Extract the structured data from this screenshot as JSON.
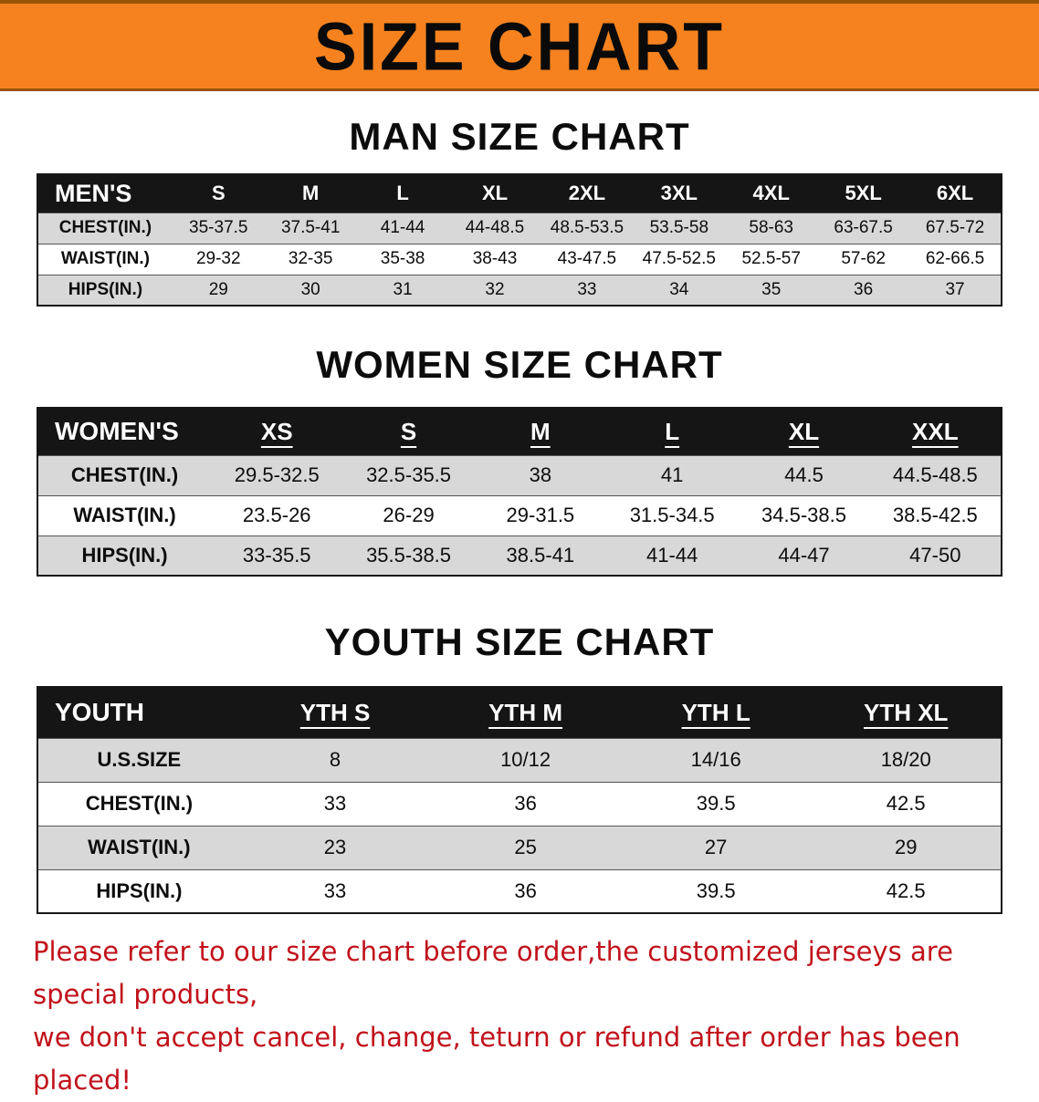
{
  "banner": {
    "title": "SIZE CHART"
  },
  "colors": {
    "banner_bg": "#f5821f",
    "banner_edge": "#9a5405",
    "header_bg": "#151515",
    "header_text": "#ffffff",
    "stripe_gray": "#d8d8d8",
    "row_white": "#ffffff",
    "footer_red": "#c1121c"
  },
  "sections": [
    {
      "heading": "MAN SIZE CHART",
      "table": {
        "corner": "MEN'S",
        "columns": [
          "S",
          "M",
          "L",
          "XL",
          "2XL",
          "3XL",
          "4XL",
          "5XL",
          "6XL"
        ],
        "rows": [
          {
            "label": "CHEST(IN.)",
            "values": [
              "35-37.5",
              "37.5-41",
              "41-44",
              "44-48.5",
              "48.5-53.5",
              "53.5-58",
              "58-63",
              "63-67.5",
              "67.5-72"
            ]
          },
          {
            "label": "WAIST(IN.)",
            "values": [
              "29-32",
              "32-35",
              "35-38",
              "38-43",
              "43-47.5",
              "47.5-52.5",
              "52.5-57",
              "57-62",
              "62-66.5"
            ]
          },
          {
            "label": "HIPS(IN.)",
            "values": [
              "29",
              "30",
              "31",
              "32",
              "33",
              "34",
              "35",
              "36",
              "37"
            ]
          }
        ]
      }
    },
    {
      "heading": "WOMEN SIZE CHART",
      "table": {
        "corner": "WOMEN'S",
        "columns": [
          "XS",
          "S",
          "M",
          "L",
          "XL",
          "XXL"
        ],
        "rows": [
          {
            "label": "CHEST(IN.)",
            "values": [
              "29.5-32.5",
              "32.5-35.5",
              "38",
              "41",
              "44.5",
              "44.5-48.5"
            ]
          },
          {
            "label": "WAIST(IN.)",
            "values": [
              "23.5-26",
              "26-29",
              "29-31.5",
              "31.5-34.5",
              "34.5-38.5",
              "38.5-42.5"
            ]
          },
          {
            "label": "HIPS(IN.)",
            "values": [
              "33-35.5",
              "35.5-38.5",
              "38.5-41",
              "41-44",
              "44-47",
              "47-50"
            ]
          }
        ]
      }
    },
    {
      "heading": "YOUTH SIZE CHART",
      "table": {
        "corner": "YOUTH",
        "columns": [
          "YTH S",
          "YTH M",
          "YTH L",
          "YTH XL"
        ],
        "rows": [
          {
            "label": "U.S.SIZE",
            "values": [
              "8",
              "10/12",
              "14/16",
              "18/20"
            ]
          },
          {
            "label": "CHEST(IN.)",
            "values": [
              "33",
              "36",
              "39.5",
              "42.5"
            ]
          },
          {
            "label": "WAIST(IN.)",
            "values": [
              "23",
              "25",
              "27",
              "29"
            ]
          },
          {
            "label": "HIPS(IN.)",
            "values": [
              "33",
              "36",
              "39.5",
              "42.5"
            ]
          }
        ]
      }
    }
  ],
  "footer": {
    "line1": "Please refer to our size chart before order,the customized jerseys are special products,",
    "line2": "we don't accept cancel, change, teturn or refund after order has been placed!"
  }
}
